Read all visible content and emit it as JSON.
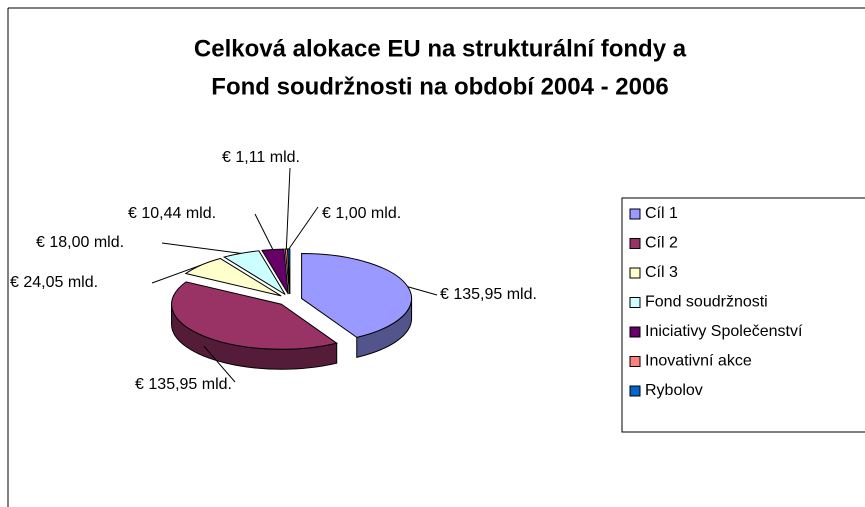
{
  "chart_data": {
    "type": "pie",
    "title": [
      "Celková alokace EU na strukturální fondy a",
      "Fond soudržnosti na období 2004 - 2006"
    ],
    "categories": [
      "Cíl 1",
      "Cíl 2",
      "Cíl 3",
      "Fond soudržnosti",
      "Iniciativy Společenství",
      "Inovativní akce",
      "Rybolov"
    ],
    "values": [
      135.95,
      135.95,
      24.05,
      18.0,
      10.44,
      1.11,
      1.0
    ],
    "value_labels": [
      "€ 135,95 mld.",
      "€ 135,95 mld.",
      "€ 24,05 mld.",
      "€ 18,00 mld.",
      "€ 10,44 mld.",
      "€ 1,11 mld.",
      "€ 1,00 mld."
    ],
    "colors": [
      "#9999ff",
      "#993366",
      "#ffffcc",
      "#ccffff",
      "#660066",
      "#ff8080",
      "#0066cc"
    ],
    "legend": "right"
  }
}
